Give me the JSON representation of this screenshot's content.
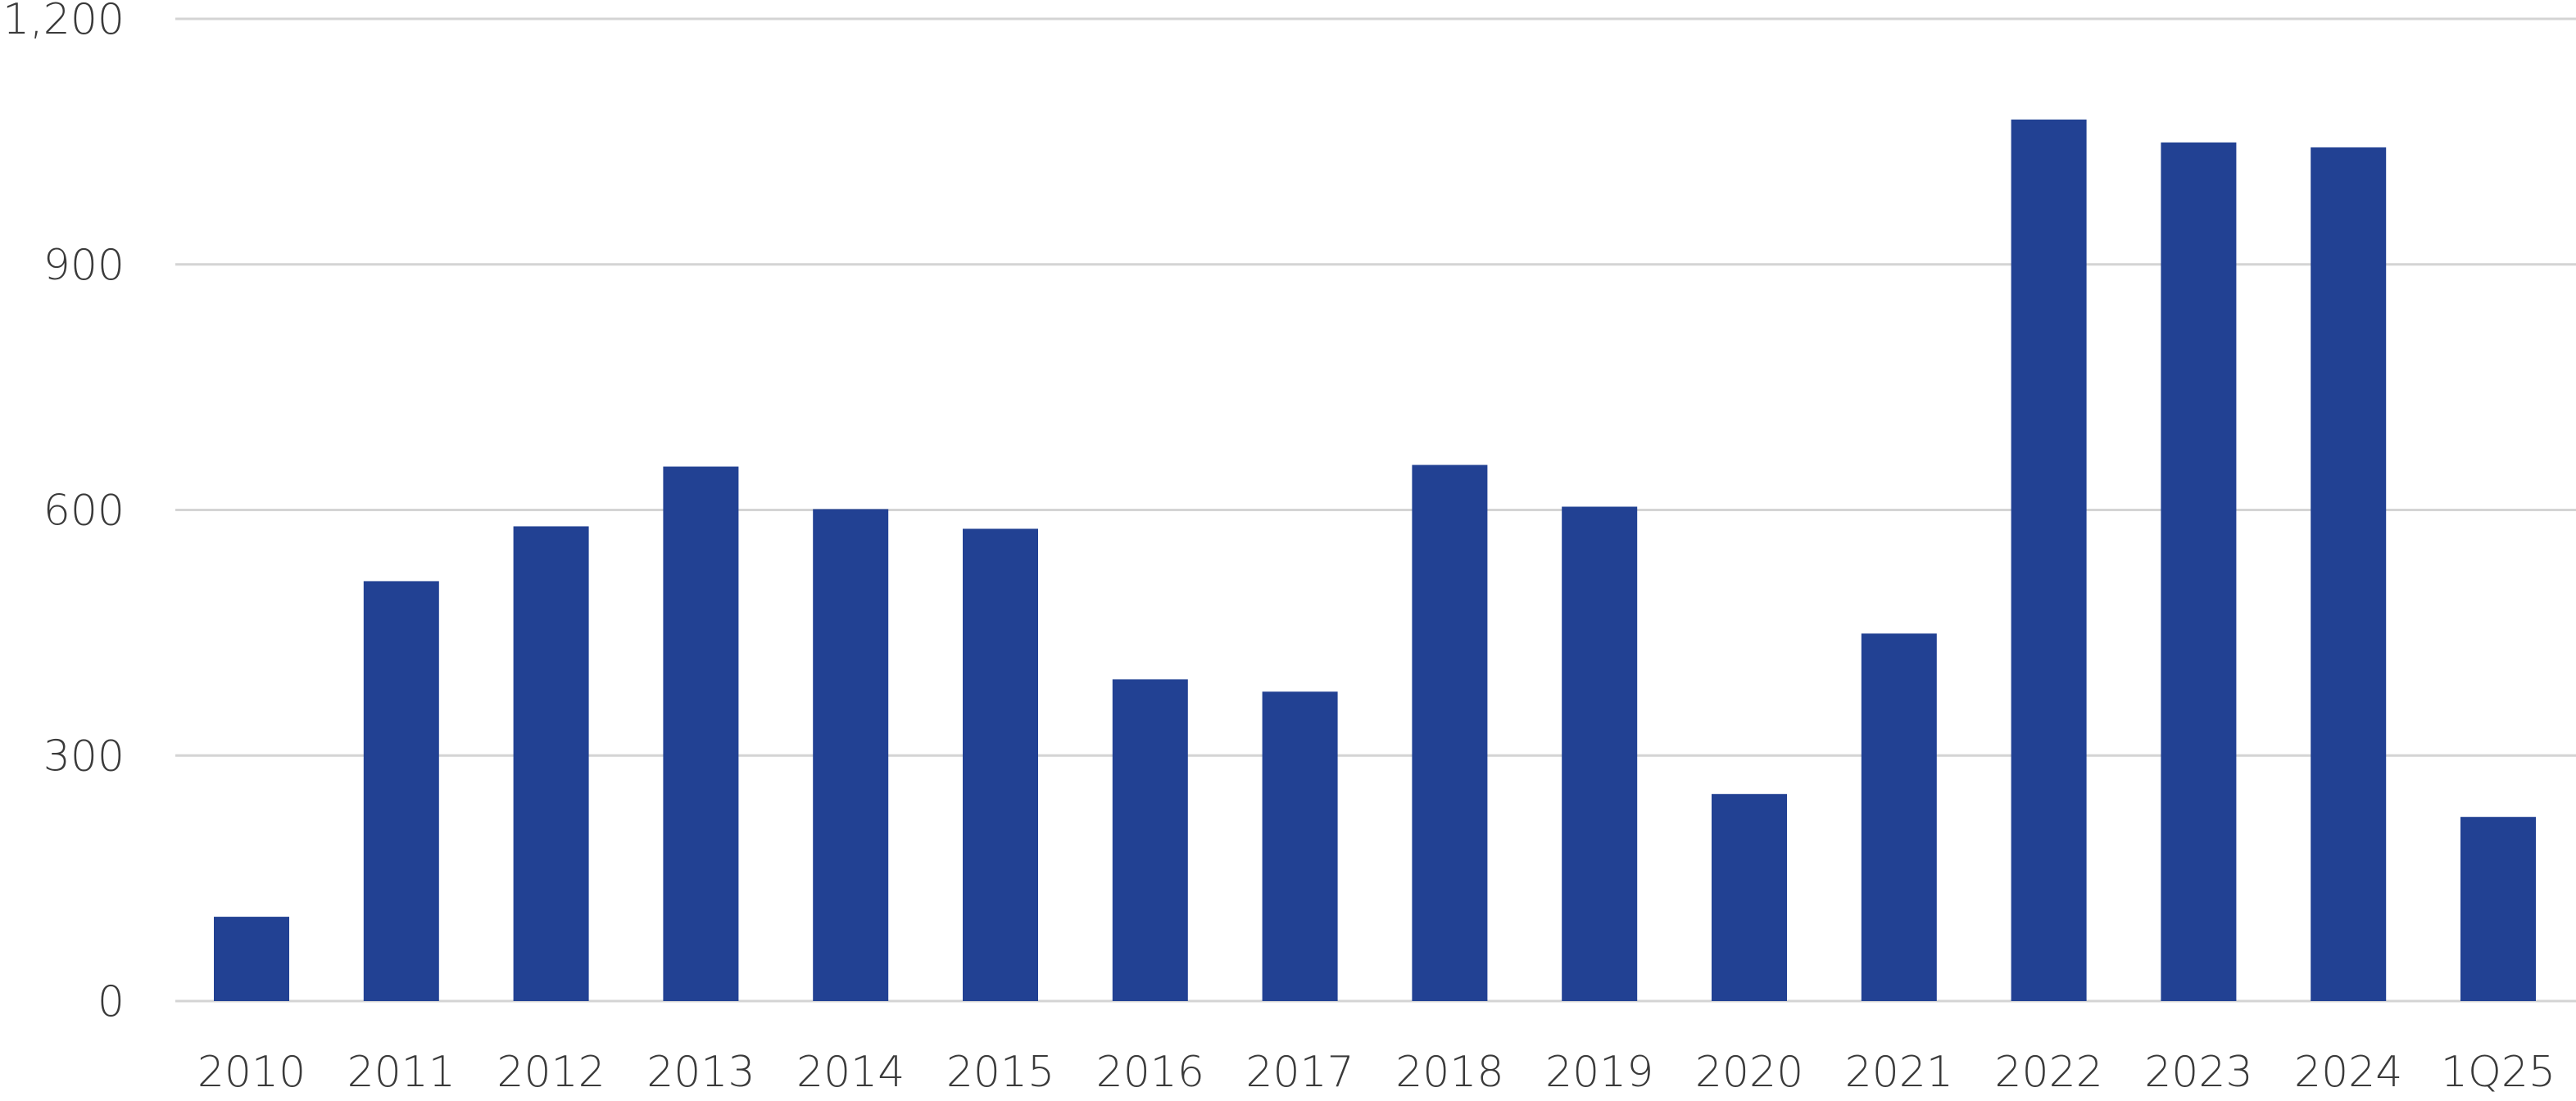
{
  "chart_data": {
    "type": "bar",
    "title": "",
    "xlabel": "",
    "ylabel": "",
    "categories": [
      "2010",
      "2011",
      "2012",
      "2013",
      "2014",
      "2015",
      "2016",
      "2017",
      "2018",
      "2019",
      "2020",
      "2021",
      "2022",
      "2023",
      "2024",
      "1Q25"
    ],
    "values": [
      103,
      513,
      580,
      653,
      601,
      577,
      393,
      378,
      655,
      604,
      253,
      449,
      1077,
      1049,
      1043,
      225
    ],
    "ylim": [
      0,
      1200
    ],
    "yticks": [
      0,
      300,
      600,
      900,
      1200
    ],
    "ytick_labels": [
      "0",
      "300",
      "600",
      "900",
      "1,200"
    ],
    "grid": true,
    "legend": "none",
    "colors": {
      "bar": "#224193",
      "grid": "#d4d4d4",
      "text": "#3a3a3a"
    }
  }
}
